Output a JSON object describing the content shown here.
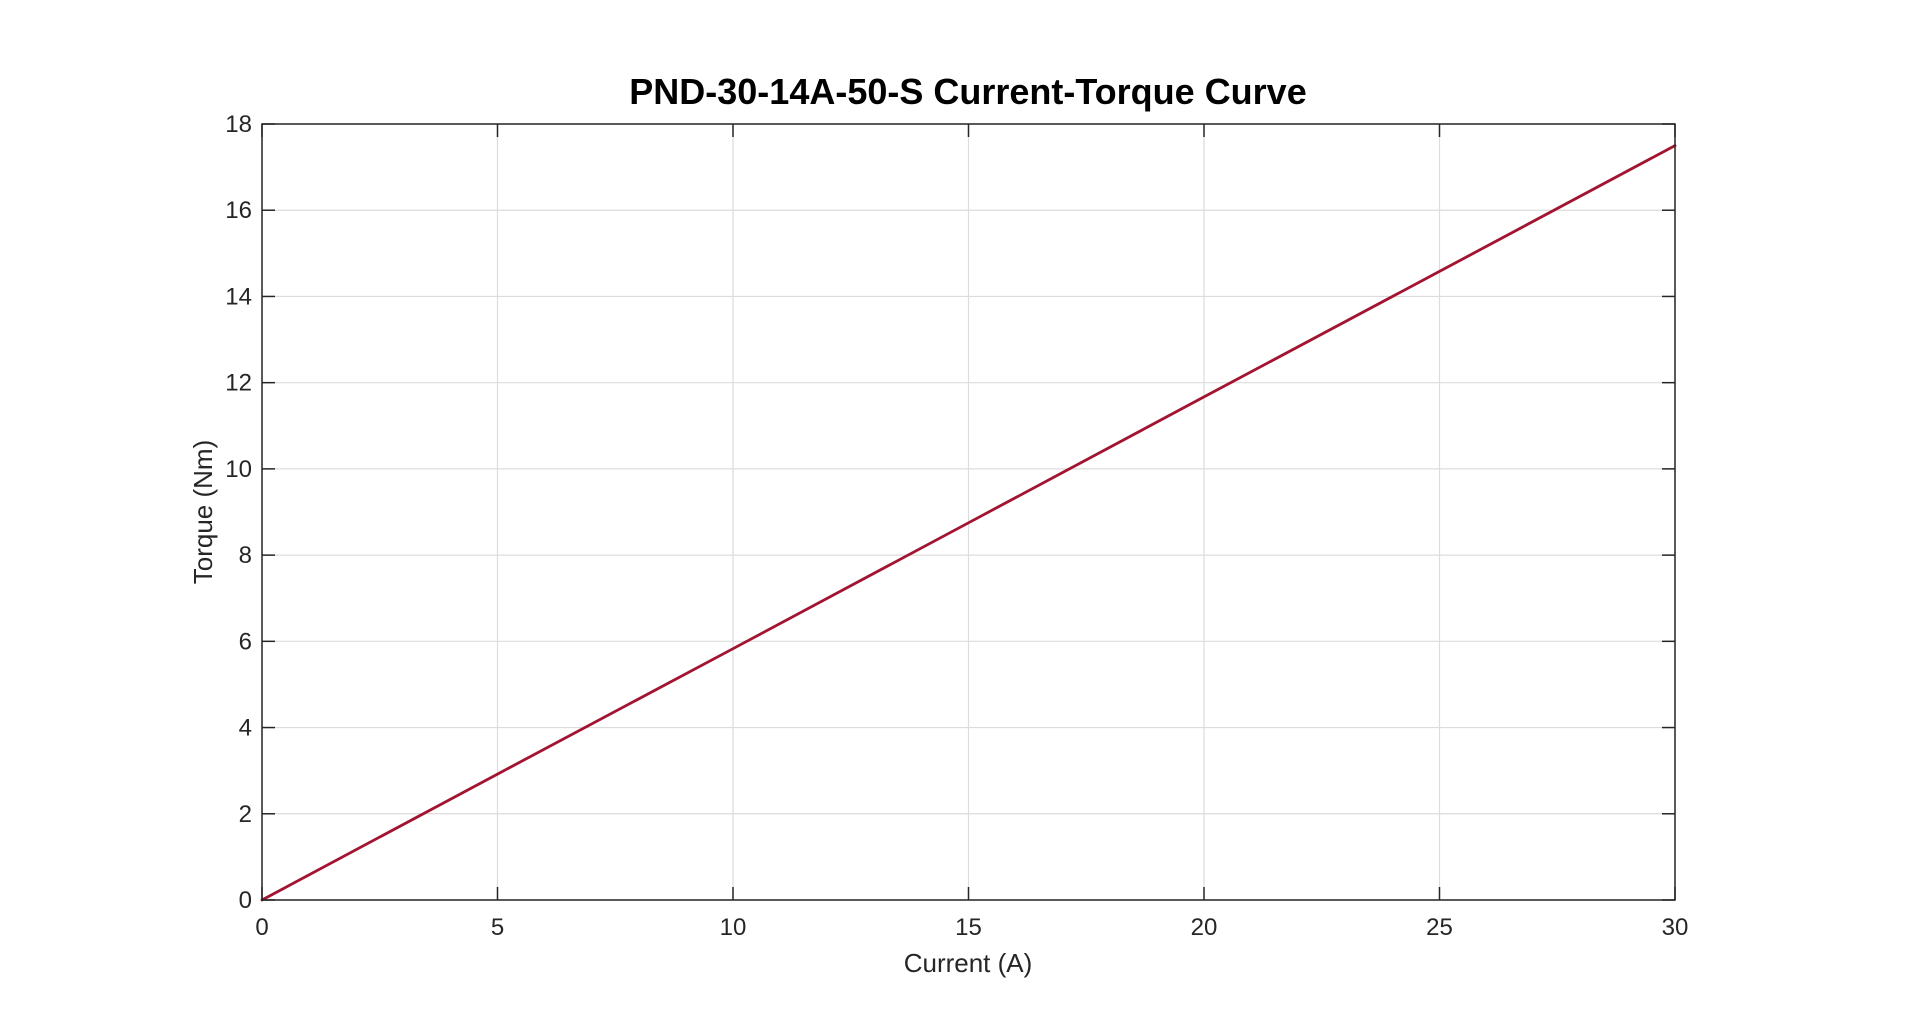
{
  "chart_data": {
    "type": "line",
    "title": "PND-30-14A-50-S Current-Torque Curve",
    "xlabel": "Current (A)",
    "ylabel": "Torque (Nm)",
    "xlim": [
      0,
      30
    ],
    "ylim": [
      0,
      18
    ],
    "xticks": [
      0,
      5,
      10,
      15,
      20,
      25,
      30
    ],
    "yticks": [
      0,
      2,
      4,
      6,
      8,
      10,
      12,
      14,
      16,
      18
    ],
    "grid": true,
    "legend": "none",
    "series": [
      {
        "color": "#A2142F",
        "x": [
          0,
          5,
          10,
          15,
          20,
          25,
          30
        ],
        "y": [
          0,
          2.92,
          5.83,
          8.75,
          11.67,
          14.58,
          17.5
        ]
      }
    ]
  }
}
